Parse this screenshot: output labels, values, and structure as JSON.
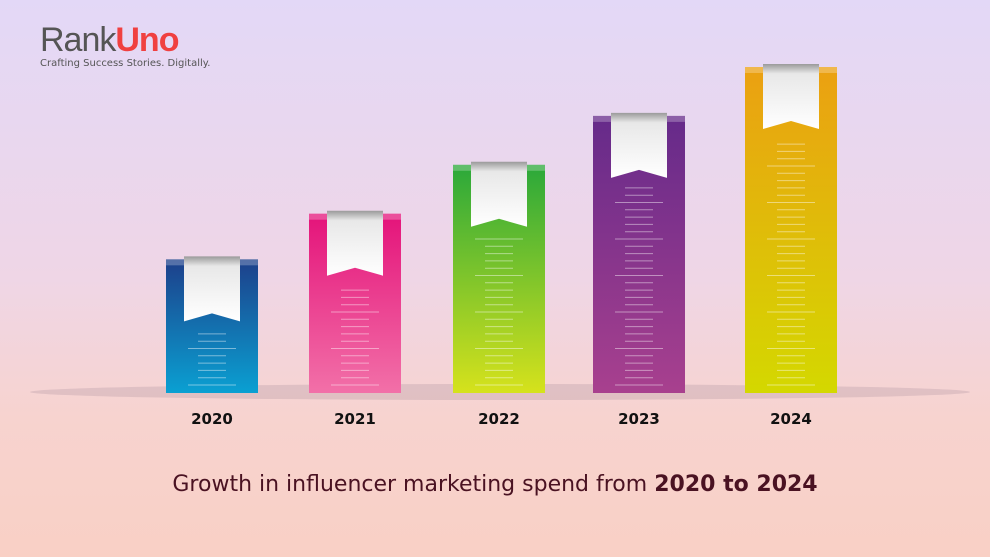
{
  "logo": {
    "part1": "Rank",
    "part2": "Uno",
    "tagline": "Crafting Success Stories. Digitally."
  },
  "caption": {
    "text": "Growth in influencer marketing spend from ",
    "bold": "2020 to 2024"
  },
  "chart_data": {
    "type": "bar",
    "title": "Growth in influencer marketing spend from 2020 to 2024",
    "categories": [
      "2020",
      "2021",
      "2022",
      "2023",
      "2024"
    ],
    "values": [
      41,
      55,
      70,
      85,
      100
    ],
    "value_units": "relative (2024 = 100), no axis shown",
    "ylim": [
      0,
      100
    ],
    "grid": false,
    "colors": [
      [
        "#1d3f8a",
        "#0aa0d2"
      ],
      [
        "#e4137a",
        "#f270a8"
      ],
      [
        "#2aa83a",
        "#d6e21c"
      ],
      [
        "#652a8a",
        "#a8408e"
      ],
      [
        "#eba012",
        "#d4d800"
      ]
    ]
  }
}
